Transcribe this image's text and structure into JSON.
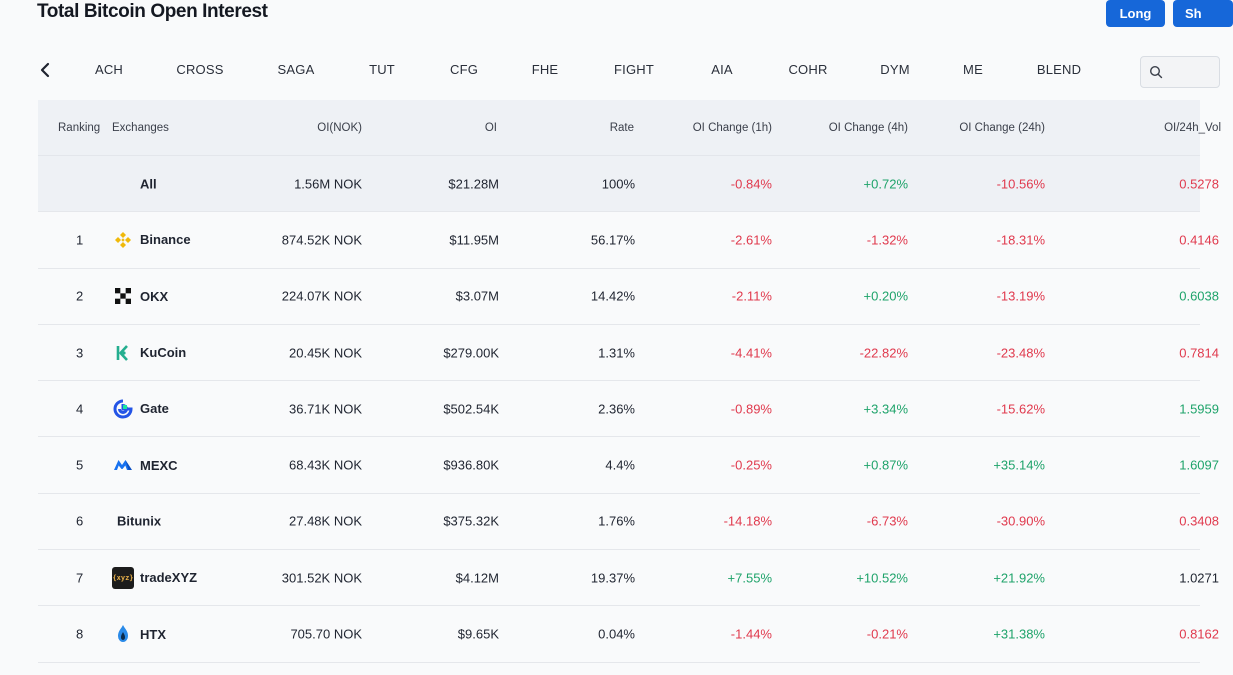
{
  "header": {
    "title": "Total Bitcoin Open Interest",
    "long_label": "Long",
    "short_label": "Sh"
  },
  "tabs": [
    "ACH",
    "CROSS",
    "SAGA",
    "TUT",
    "CFG",
    "FHE",
    "FIGHT",
    "AIA",
    "COHR",
    "DYM",
    "ME",
    "BLEND"
  ],
  "columns": {
    "ranking": "Ranking",
    "exchanges": "Exchanges",
    "oi_nok": "OI(NOK)",
    "oi": "OI",
    "rate": "Rate",
    "oi_1h": "OI Change (1h)",
    "oi_4h": "OI Change (4h)",
    "oi_24h": "OI Change (24h)",
    "oi_vol": "OI/24h_Vol"
  },
  "rows": [
    {
      "rank": "",
      "name": "All",
      "logo": "none",
      "oi_nok": "1.56M NOK",
      "oi": "$21.28M",
      "rate": "100%",
      "c1h": "-0.84%",
      "c4h": "+0.72%",
      "c24h": "-10.56%",
      "vol": "0.5278",
      "vol_trend": "neg"
    },
    {
      "rank": "1",
      "name": "Binance",
      "logo": "binance-logo",
      "oi_nok": "874.52K NOK",
      "oi": "$11.95M",
      "rate": "56.17%",
      "c1h": "-2.61%",
      "c4h": "-1.32%",
      "c24h": "-18.31%",
      "vol": "0.4146",
      "vol_trend": "neg"
    },
    {
      "rank": "2",
      "name": "OKX",
      "logo": "okx-logo",
      "oi_nok": "224.07K NOK",
      "oi": "$3.07M",
      "rate": "14.42%",
      "c1h": "-2.11%",
      "c4h": "+0.20%",
      "c24h": "-13.19%",
      "vol": "0.6038",
      "vol_trend": "pos"
    },
    {
      "rank": "3",
      "name": "KuCoin",
      "logo": "kucoin-logo",
      "oi_nok": "20.45K NOK",
      "oi": "$279.00K",
      "rate": "1.31%",
      "c1h": "-4.41%",
      "c4h": "-22.82%",
      "c24h": "-23.48%",
      "vol": "0.7814",
      "vol_trend": "neg"
    },
    {
      "rank": "4",
      "name": "Gate",
      "logo": "gate-logo",
      "oi_nok": "36.71K NOK",
      "oi": "$502.54K",
      "rate": "2.36%",
      "c1h": "-0.89%",
      "c4h": "+3.34%",
      "c24h": "-15.62%",
      "vol": "1.5959",
      "vol_trend": "pos"
    },
    {
      "rank": "5",
      "name": "MEXC",
      "logo": "mexc-logo",
      "oi_nok": "68.43K NOK",
      "oi": "$936.80K",
      "rate": "4.4%",
      "c1h": "-0.25%",
      "c4h": "+0.87%",
      "c24h": "+35.14%",
      "vol": "1.6097",
      "vol_trend": "pos"
    },
    {
      "rank": "6",
      "name": "Bitunix",
      "logo": "none",
      "oi_nok": "27.48K NOK",
      "oi": "$375.32K",
      "rate": "1.76%",
      "c1h": "-14.18%",
      "c4h": "-6.73%",
      "c24h": "-30.90%",
      "vol": "0.3408",
      "vol_trend": "neg"
    },
    {
      "rank": "7",
      "name": "tradeXYZ",
      "logo": "tradexyz-logo",
      "logo_text": "{xyz}",
      "oi_nok": "301.52K NOK",
      "oi": "$4.12M",
      "rate": "19.37%",
      "c1h": "+7.55%",
      "c4h": "+10.52%",
      "c24h": "+21.92%",
      "vol": "1.0271",
      "vol_trend": "neu"
    },
    {
      "rank": "8",
      "name": "HTX",
      "logo": "htx-logo",
      "oi_nok": "705.70 NOK",
      "oi": "$9.65K",
      "rate": "0.04%",
      "c1h": "-1.44%",
      "c4h": "-0.21%",
      "c24h": "+31.38%",
      "vol": "0.8162",
      "vol_trend": "neg"
    }
  ],
  "colors": {
    "accent": "#1667d9",
    "negative": "#e0394d",
    "positive": "#1ea36a"
  }
}
